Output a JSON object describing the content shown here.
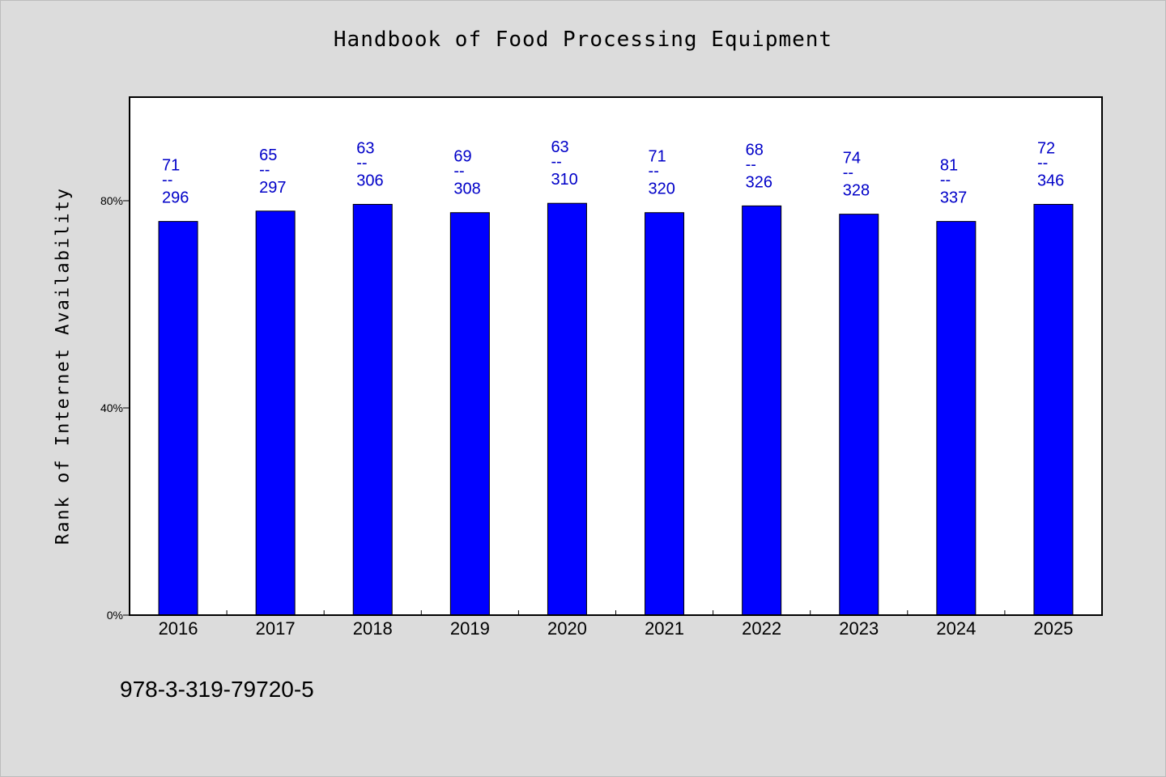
{
  "chart_data": {
    "type": "bar",
    "title": "Handbook of Food Processing Equipment",
    "xlabel": "",
    "ylabel": "Rank of Internet Availability",
    "categories": [
      "2016",
      "2017",
      "2018",
      "2019",
      "2020",
      "2021",
      "2022",
      "2023",
      "2024",
      "2025"
    ],
    "values": [
      76,
      78,
      79.3,
      77.7,
      79.5,
      77.7,
      79,
      77.4,
      76,
      79.3
    ],
    "ylim": [
      0,
      100
    ],
    "yticks": [
      {
        "value": 0,
        "label": "0%"
      },
      {
        "value": 40,
        "label": "40%"
      },
      {
        "value": 80,
        "label": "80%"
      }
    ],
    "data_labels": [
      {
        "top": "71",
        "mid": "--",
        "bottom": "296"
      },
      {
        "top": "65",
        "mid": "--",
        "bottom": "297"
      },
      {
        "top": "63",
        "mid": "--",
        "bottom": "306"
      },
      {
        "top": "69",
        "mid": "--",
        "bottom": "308"
      },
      {
        "top": "63",
        "mid": "--",
        "bottom": "310"
      },
      {
        "top": "71",
        "mid": "--",
        "bottom": "320"
      },
      {
        "top": "68",
        "mid": "--",
        "bottom": "326"
      },
      {
        "top": "74",
        "mid": "--",
        "bottom": "328"
      },
      {
        "top": "81",
        "mid": "--",
        "bottom": "337"
      },
      {
        "top": "72",
        "mid": "--",
        "bottom": "346"
      }
    ],
    "grid": false,
    "colors": {
      "bar": "#0000ff",
      "label": "#0000c8",
      "plot_bg": "#ffffff",
      "page_bg": "#dcdcdc"
    }
  },
  "footer": {
    "isbn": "978-3-319-79720-5"
  }
}
